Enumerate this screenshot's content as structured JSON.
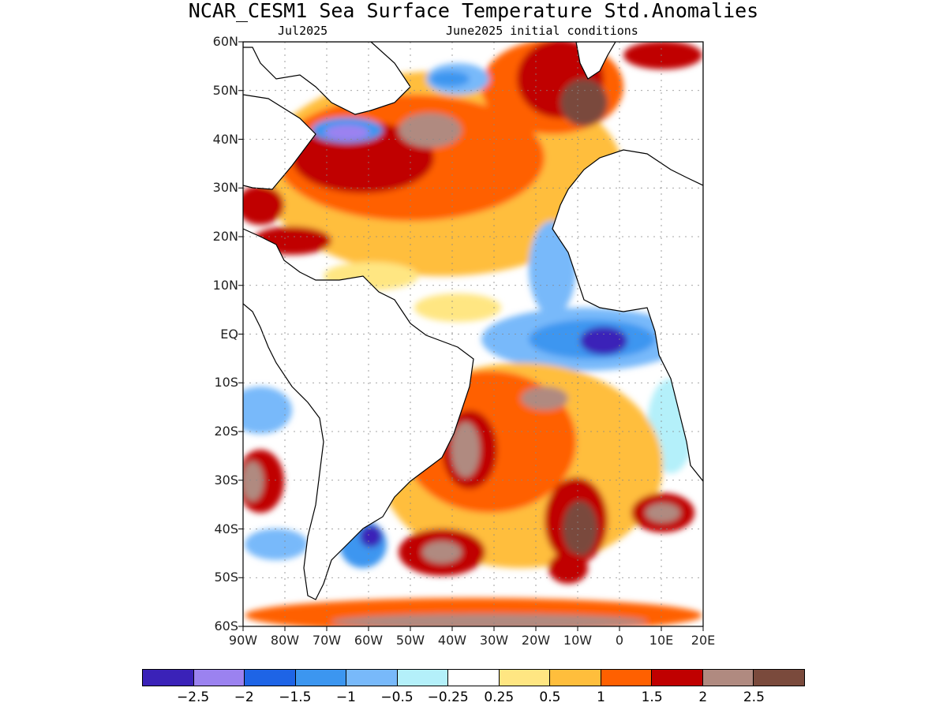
{
  "title": "NCAR_CESM1 Sea Surface Temperature Std.Anomalies",
  "subtitle_left": "Jul2025",
  "subtitle_right": "June2025 initial conditions",
  "map": {
    "lon_range": [
      -90,
      20
    ],
    "lat_range": [
      -60,
      60
    ],
    "lat_labels": [
      "60N",
      "50N",
      "40N",
      "30N",
      "20N",
      "10N",
      "EQ",
      "10S",
      "20S",
      "30S",
      "40S",
      "50S",
      "60S"
    ],
    "lon_labels": [
      "90W",
      "80W",
      "70W",
      "60W",
      "50W",
      "40W",
      "30W",
      "20W",
      "10W",
      "0",
      "10E",
      "20E"
    ]
  },
  "colorbar": {
    "colors": [
      "#3a22b8",
      "#9b82f0",
      "#1e64e6",
      "#3c96f0",
      "#78b9fa",
      "#b4f0fa",
      "#ffffff",
      "#ffe682",
      "#ffbe3c",
      "#ff6000",
      "#c00000",
      "#b08a80",
      "#7a4a3c"
    ],
    "labels": [
      "−2.5",
      "−2",
      "−1.5",
      "−1",
      "−0.5",
      "−0.25",
      "0.25",
      "0.5",
      "1",
      "1.5",
      "2",
      "2.5"
    ]
  }
}
